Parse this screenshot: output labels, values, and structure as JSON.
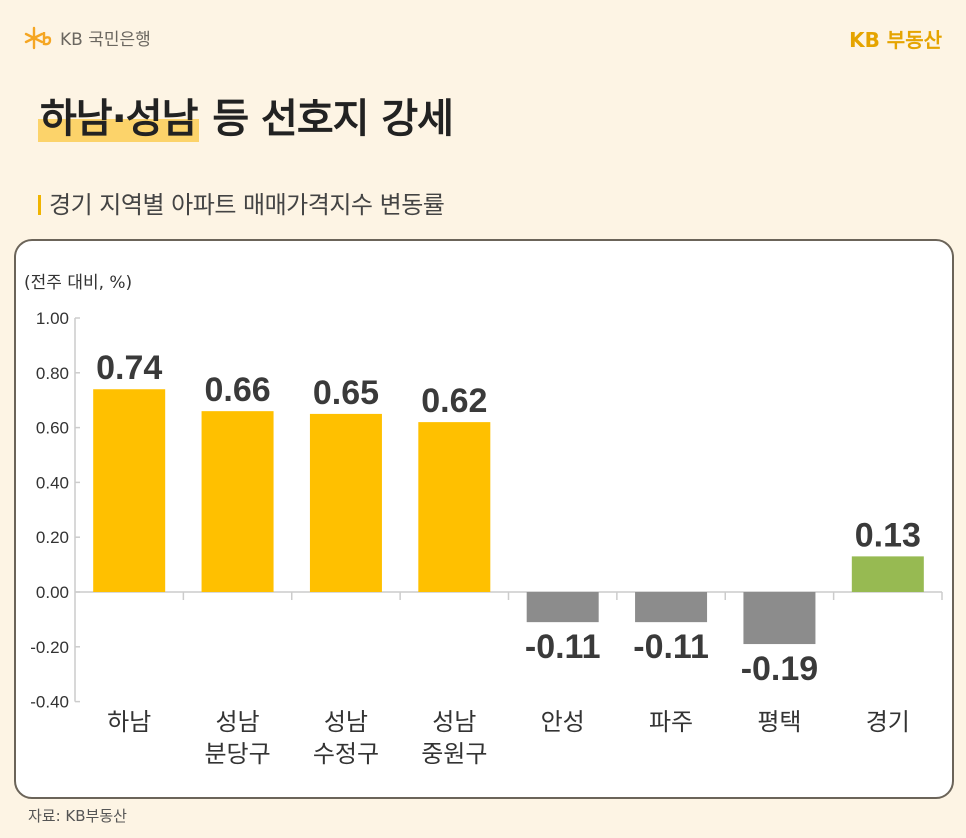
{
  "header": {
    "bank_logo": "KB 국민은행",
    "brand": "KB 부동산"
  },
  "title": {
    "highlight": "하남·성남",
    "rest": " 등 선호지 강세"
  },
  "subtitle": "경기 지역별 아파트 매매가격지수 변동률",
  "source": "자료: KB부동산",
  "colors": {
    "background": "#fdf4e4",
    "positive": "#ffc000",
    "negative": "#8c8c8c",
    "average": "#97ba52",
    "highlight": "#fcd36a"
  },
  "chart_data": {
    "type": "bar",
    "unit_label": "(전주 대비, %)",
    "categories": [
      [
        "하남"
      ],
      [
        "성남",
        "분당구"
      ],
      [
        "성남",
        "수정구"
      ],
      [
        "성남",
        "중원구"
      ],
      [
        "안성"
      ],
      [
        "파주"
      ],
      [
        "평택"
      ],
      [
        "경기"
      ]
    ],
    "values": [
      0.74,
      0.66,
      0.65,
      0.62,
      -0.11,
      -0.11,
      -0.19,
      0.13
    ],
    "data_labels": [
      "0.74",
      "0.66",
      "0.65",
      "0.62",
      "-0.11",
      "-0.11",
      "-0.19",
      "0.13"
    ],
    "ylim": [
      -0.4,
      1.0
    ],
    "yticks": [
      "1.00",
      "0.80",
      "0.60",
      "0.40",
      "0.20",
      "0.00",
      "-0.20",
      "-0.40"
    ],
    "grid": false
  }
}
